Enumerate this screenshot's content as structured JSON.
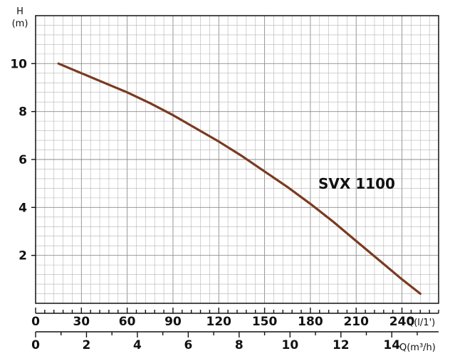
{
  "chart_data": {
    "type": "line",
    "ylabel_lines": [
      "H",
      "(m)"
    ],
    "xlabel_flow_lpm": "Q(l/1')",
    "xlabel_flow_m3h": "Q(m³/h)",
    "ylim": [
      0,
      12
    ],
    "xlim_lpm": [
      0,
      264
    ],
    "xlim_m3h": [
      0,
      15.84
    ],
    "y_ticks": [
      2,
      4,
      6,
      8,
      10
    ],
    "x_ticks_lpm": [
      0,
      30,
      60,
      90,
      120,
      150,
      180,
      210,
      240
    ],
    "x_ticks_m3h": [
      0,
      2,
      4,
      6,
      8,
      10,
      12,
      14
    ],
    "grid": true,
    "colors": {
      "curve": "#7a3a20",
      "frame": "#111111"
    },
    "series": [
      {
        "name": "SVX 1100",
        "x": [
          15,
          30,
          45,
          60,
          75,
          90,
          105,
          120,
          135,
          150,
          165,
          180,
          195,
          210,
          225,
          240,
          252
        ],
        "y": [
          10.0,
          9.6,
          9.2,
          8.8,
          8.35,
          7.85,
          7.3,
          6.75,
          6.15,
          5.5,
          4.85,
          4.15,
          3.4,
          2.6,
          1.8,
          1.0,
          0.4
        ]
      }
    ]
  }
}
